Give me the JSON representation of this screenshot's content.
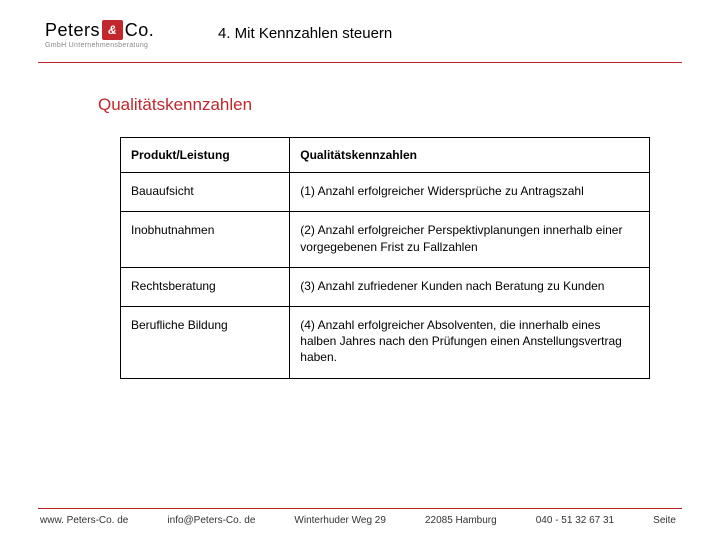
{
  "logo": {
    "brand_left": "Peters",
    "brand_amp": "&",
    "brand_right": "Co.",
    "sub": "GmbH Unternehmensberatung"
  },
  "slide_title": "4. Mit Kennzahlen steuern",
  "section_title": "Qualitätskennzahlen",
  "table": {
    "headers": [
      "Produkt/Leistung",
      "Qualitätskennzahlen"
    ],
    "rows": [
      [
        "Bauaufsicht",
        "(1) Anzahl erfolgreicher Widersprüche zu Antragszahl"
      ],
      [
        "Inobhutnahmen",
        "(2) Anzahl erfolgreicher Perspektivplanungen innerhalb einer vorgegebenen Frist zu Fallzahlen"
      ],
      [
        "Rechtsberatung",
        "(3) Anzahl zufriedener Kunden nach Beratung zu Kunden"
      ],
      [
        "Berufliche Bildung",
        "(4) Anzahl erfolgreicher Absolventen, die innerhalb eines halben Jahres nach den Prüfungen einen Anstellungsvertrag haben."
      ]
    ],
    "col_widths": [
      "32%",
      "68%"
    ]
  },
  "footer": {
    "website": "www. Peters-Co. de",
    "email": "info@Peters-Co. de",
    "address_street": "Winterhuder Weg 29",
    "address_city": "22085 Hamburg",
    "phone": "040  - 51 32 67 31",
    "page_label": "Seite"
  },
  "colors": {
    "accent": "#c1272d",
    "text": "#000000",
    "footer_text": "#333333",
    "border": "#000000",
    "background": "#ffffff"
  },
  "fonts": {
    "base": "Arial",
    "title_size_pt": 15,
    "section_size_pt": 17,
    "table_size_pt": 12,
    "footer_size_pt": 10
  }
}
